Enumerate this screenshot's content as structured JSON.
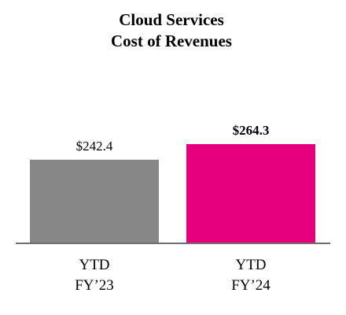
{
  "chart_data": {
    "type": "bar",
    "title_lines": [
      "Cloud Services",
      "Cost of Revenues"
    ],
    "categories": [
      [
        "YTD",
        "FY’23"
      ],
      [
        "YTD",
        "FY’24"
      ]
    ],
    "values": [
      242.4,
      264.3
    ],
    "value_labels": [
      "$242.4",
      "$264.3"
    ],
    "value_label_bold": [
      false,
      true
    ],
    "colors": [
      "#878787",
      "#e6007e"
    ],
    "axis_color": "#6f6f6f",
    "ylim": [
      125,
      270
    ],
    "grid": false,
    "legend": "none"
  }
}
